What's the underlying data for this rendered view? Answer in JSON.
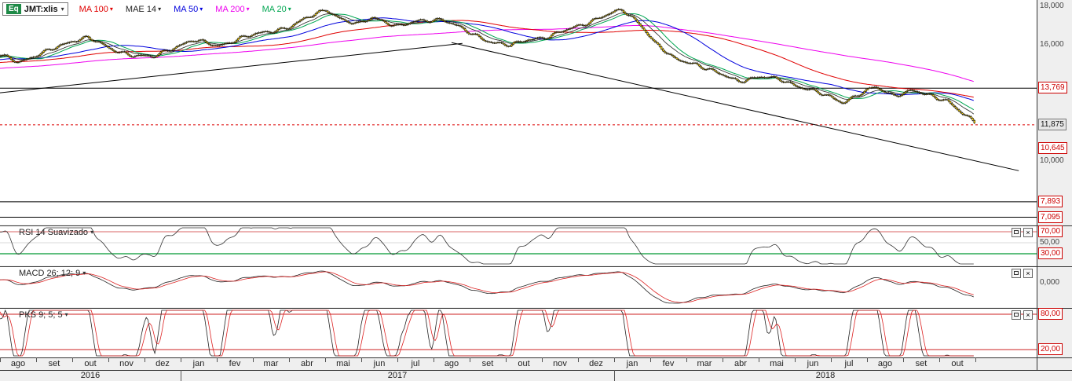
{
  "header": {
    "symbol_badge": "Eq",
    "symbol": "JMT:xlis",
    "overlays": [
      {
        "label": "MA 100",
        "color": "#e00000"
      },
      {
        "label": "MAE 14",
        "color": "#222222"
      },
      {
        "label": "MA 50",
        "color": "#0000dd"
      },
      {
        "label": "MA 200",
        "color": "#ee00ee"
      },
      {
        "label": "MA 20",
        "color": "#00a651"
      }
    ]
  },
  "icons": {
    "caret": "▾",
    "close": "×"
  },
  "theme": {
    "background": "#efefef",
    "panel_background": "#ffffff",
    "alert_red": "#cc0000",
    "last_price_box": "#e6e6e6",
    "candle_fill": "#ffd700",
    "separator": "#333333"
  },
  "price_axis": {
    "plain": [
      {
        "text": "18,000",
        "price": 18000
      },
      {
        "text": "16,000",
        "price": 16000
      },
      {
        "text": "10,000",
        "price": 10000
      }
    ],
    "boxed": [
      {
        "text": "13,769",
        "price": 13769,
        "style": "alert"
      },
      {
        "text": "11,875",
        "price": 11875,
        "style": "last"
      },
      {
        "text": "10,645",
        "price": 10645,
        "style": "alert"
      },
      {
        "text": "7,893",
        "price": 7893,
        "style": "alert"
      },
      {
        "text": "7,095",
        "price": 7095,
        "style": "alert"
      }
    ]
  },
  "panels": {
    "rsi": {
      "title": "RSI 14 Suavizado",
      "levels": [
        {
          "text": "70,00",
          "value": 70,
          "style": "alert"
        },
        {
          "text": "50,00",
          "value": 50,
          "style": "plain"
        },
        {
          "text": "30,00",
          "value": 30,
          "style": "alert"
        }
      ]
    },
    "macd": {
      "title": "MACD 26; 12; 9",
      "levels": [
        {
          "text": "0,000",
          "value": 0,
          "style": "plain"
        }
      ]
    },
    "pks": {
      "title": "PKS 9; 5; 5",
      "levels": [
        {
          "text": "80,00",
          "value": 80,
          "style": "alert"
        },
        {
          "text": "20,00",
          "value": 20,
          "style": "alert"
        }
      ]
    }
  },
  "time_axis": {
    "months": [
      "ago",
      "set",
      "out",
      "nov",
      "dez",
      "jan",
      "fev",
      "mar",
      "abr",
      "mai",
      "jun",
      "jul",
      "ago",
      "set",
      "out",
      "nov",
      "dez",
      "jan",
      "fev",
      "mar",
      "abr",
      "mai",
      "jun",
      "jul",
      "ago",
      "set",
      "out"
    ],
    "years": [
      {
        "label": "2016",
        "startMonth": 0,
        "monthCount": 5
      },
      {
        "label": "2017",
        "startMonth": 5,
        "monthCount": 12
      },
      {
        "label": "2018",
        "startMonth": 17,
        "monthCount": 10
      }
    ]
  },
  "chart_data": {
    "type": "candlestick",
    "title": "JMT:xlis daily candles with MA 100 / MAE 14 / MA 50 / MA 200 / MA 20 overlays and RSI, MACD, PKS sub-panels",
    "x_range": "ago 2016 - out 2018 (27 months)",
    "ylim": [
      6700,
      18300
    ],
    "last_price": 11875,
    "alert_levels": [
      13769,
      10645,
      7893,
      7095
    ],
    "candle_color": "#ffd700",
    "wick_color": "#000000",
    "anchor_format": "[month_index_from_ago_2016, approx_close_price]",
    "price_anchors": [
      [
        -10,
        14100
      ],
      [
        -6,
        14650
      ],
      [
        -3,
        15000
      ],
      [
        -1,
        15250
      ],
      [
        0,
        15450
      ],
      [
        0.5,
        15150
      ],
      [
        1.2,
        15600
      ],
      [
        2.0,
        16250
      ],
      [
        2.4,
        16400
      ],
      [
        3.0,
        15800
      ],
      [
        3.6,
        15500
      ],
      [
        4.2,
        15350
      ],
      [
        4.8,
        15900
      ],
      [
        5.3,
        16250
      ],
      [
        6.0,
        15950
      ],
      [
        6.6,
        16350
      ],
      [
        7.2,
        16600
      ],
      [
        8.0,
        16950
      ],
      [
        8.6,
        17500
      ],
      [
        9.0,
        17850
      ],
      [
        9.5,
        17250
      ],
      [
        9.9,
        17050
      ],
      [
        10.3,
        17450
      ],
      [
        11.0,
        16950
      ],
      [
        11.6,
        17250
      ],
      [
        12.2,
        17350
      ],
      [
        13.0,
        16600
      ],
      [
        13.6,
        16150
      ],
      [
        14.1,
        15950
      ],
      [
        14.6,
        16300
      ],
      [
        15.2,
        16450
      ],
      [
        16.0,
        17000
      ],
      [
        16.6,
        17450
      ],
      [
        17.2,
        17800
      ],
      [
        17.7,
        17100
      ],
      [
        18.1,
        16100
      ],
      [
        18.6,
        15300
      ],
      [
        19.2,
        15050
      ],
      [
        19.8,
        14550
      ],
      [
        20.4,
        14150
      ],
      [
        21.0,
        14350
      ],
      [
        21.6,
        14200
      ],
      [
        22.2,
        13800
      ],
      [
        22.8,
        13400
      ],
      [
        23.3,
        13050
      ],
      [
        23.8,
        13500
      ],
      [
        24.2,
        13800
      ],
      [
        24.7,
        13400
      ],
      [
        25.2,
        13650
      ],
      [
        25.8,
        13300
      ],
      [
        26.2,
        13150
      ],
      [
        26.6,
        12500
      ],
      [
        27.0,
        11880
      ]
    ],
    "horizontal_lines": [
      {
        "price": 13769,
        "color": "#000000",
        "style": "solid"
      },
      {
        "price": 11875,
        "color": "#dd0000",
        "style": "dotted"
      },
      {
        "price": 7893,
        "color": "#000000",
        "style": "solid"
      },
      {
        "price": 7095,
        "color": "#000000",
        "style": "solid"
      }
    ],
    "trendlines": [
      {
        "m1": 0,
        "p1": 13530,
        "m2": 12.8,
        "p2": 16080,
        "color": "#000000"
      },
      {
        "m1": 12.5,
        "p1": 16120,
        "m2": 28.2,
        "p2": 9500,
        "color": "#000000"
      }
    ],
    "indicators": {
      "rsi": {
        "period": 14,
        "smoothing": 5,
        "line_color": "#333333",
        "levels": [
          {
            "value": 70,
            "color": "#cc3333"
          },
          {
            "value": 50,
            "color": "#cccccc"
          },
          {
            "value": 30,
            "color": "#009933"
          }
        ]
      },
      "macd": {
        "fast": 12,
        "slow": 26,
        "signal": 9,
        "colors": {
          "macd": "#222222",
          "signal": "#dd2222"
        }
      },
      "pks": {
        "k_period": 9,
        "k_smooth": 5,
        "d_period": 5,
        "colors": {
          "k": "#222222",
          "d": "#dd2222"
        },
        "levels": [
          {
            "value": 80,
            "color": "#cc2222"
          },
          {
            "value": 20,
            "color": "#cc2222"
          }
        ]
      }
    }
  }
}
